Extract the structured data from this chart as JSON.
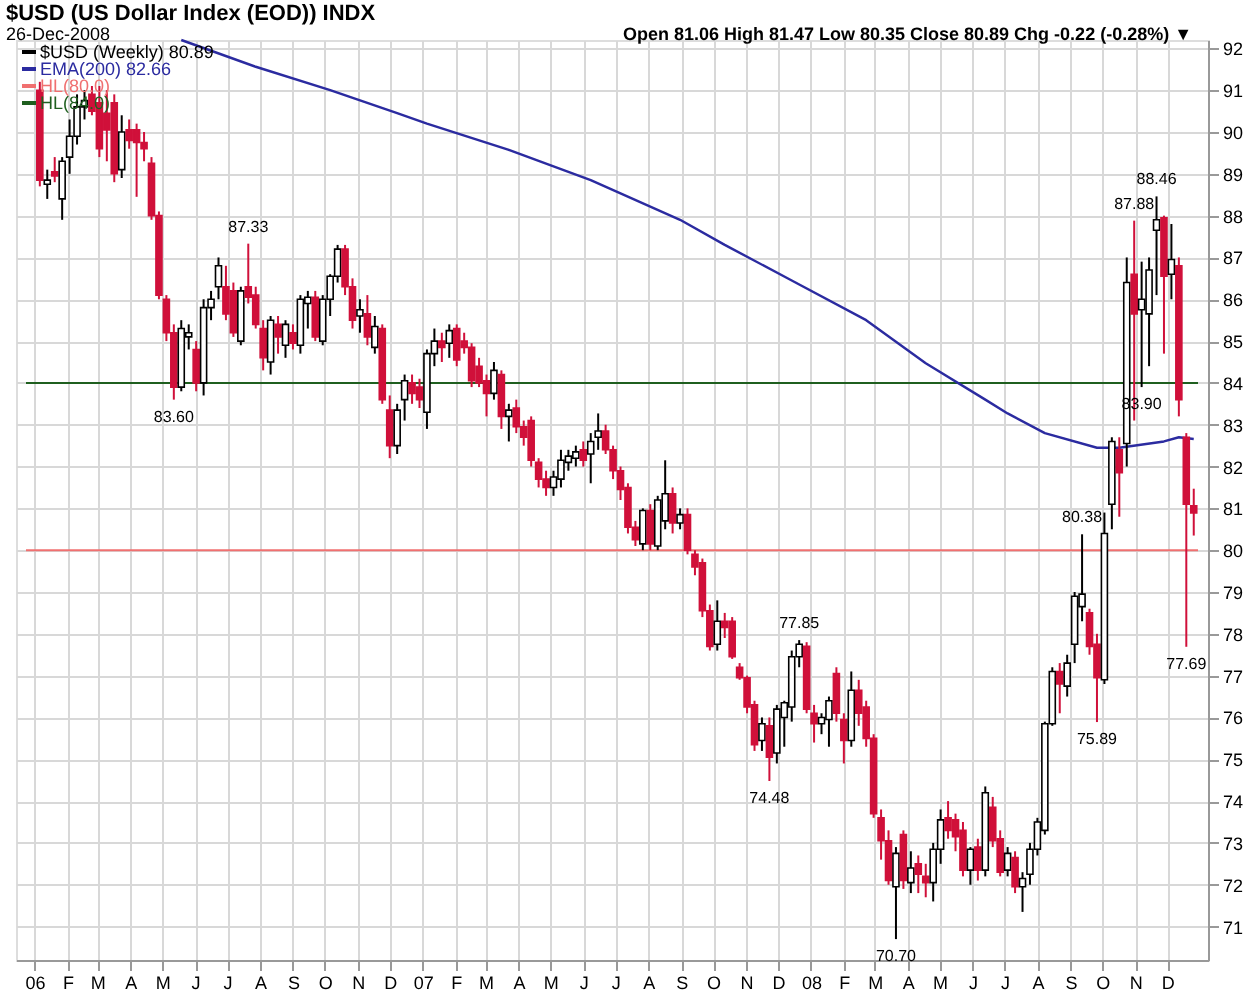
{
  "chart_data": {
    "type": "candlestick",
    "title": "$USD (US Dollar Index (EOD)) INDX",
    "subtitle": "26-Dec-2008",
    "annotations": [
      "Open 81.06 High 81.47 Low 80.35 Close 80.89 Chg -0.22 (-0.28%) ▼",
      {
        "text": "87.33",
        "x": "2006-07-21",
        "y": 87.33
      },
      {
        "text": "83.60",
        "x": "2006-05-12",
        "y": 83.6
      },
      {
        "text": "77.85",
        "x": "2007-12-21",
        "y": 77.85
      },
      {
        "text": "74.48",
        "x": "2007-11-23",
        "y": 74.48
      },
      {
        "text": "70.70",
        "x": "2008-03-21",
        "y": 70.7
      },
      {
        "text": "80.38",
        "x": "2008-09-12",
        "y": 80.38
      },
      {
        "text": "75.89",
        "x": "2008-09-26",
        "y": 75.89
      },
      {
        "text": "87.88",
        "x": "2008-10-31",
        "y": 87.88
      },
      {
        "text": "83.90",
        "x": "2008-11-07",
        "y": 83.9
      },
      {
        "text": "88.46",
        "x": "2008-11-21",
        "y": 88.46
      },
      {
        "text": "77.69",
        "x": "2008-12-19",
        "y": 77.69
      }
    ],
    "xlim": [
      "2005-12-24",
      "2008-12-30"
    ],
    "xticks": [
      {
        "value": "2006-01-01",
        "label": "06"
      },
      {
        "value": "2006-02-01",
        "label": "F"
      },
      {
        "value": "2006-03-01",
        "label": "M"
      },
      {
        "value": "2006-04-01",
        "label": "A"
      },
      {
        "value": "2006-05-01",
        "label": "M"
      },
      {
        "value": "2006-06-01",
        "label": "J"
      },
      {
        "value": "2006-07-01",
        "label": "J"
      },
      {
        "value": "2006-08-01",
        "label": "A"
      },
      {
        "value": "2006-09-01",
        "label": "S"
      },
      {
        "value": "2006-10-01",
        "label": "O"
      },
      {
        "value": "2006-11-01",
        "label": "N"
      },
      {
        "value": "2006-12-01",
        "label": "D"
      },
      {
        "value": "2007-01-01",
        "label": "07"
      },
      {
        "value": "2007-02-01",
        "label": "F"
      },
      {
        "value": "2007-03-01",
        "label": "M"
      },
      {
        "value": "2007-04-01",
        "label": "A"
      },
      {
        "value": "2007-05-01",
        "label": "M"
      },
      {
        "value": "2007-06-01",
        "label": "J"
      },
      {
        "value": "2007-07-01",
        "label": "J"
      },
      {
        "value": "2007-08-01",
        "label": "A"
      },
      {
        "value": "2007-09-01",
        "label": "S"
      },
      {
        "value": "2007-10-01",
        "label": "O"
      },
      {
        "value": "2007-11-01",
        "label": "N"
      },
      {
        "value": "2007-12-01",
        "label": "D"
      },
      {
        "value": "2008-01-01",
        "label": "08"
      },
      {
        "value": "2008-02-01",
        "label": "F"
      },
      {
        "value": "2008-03-01",
        "label": "M"
      },
      {
        "value": "2008-04-01",
        "label": "A"
      },
      {
        "value": "2008-05-01",
        "label": "M"
      },
      {
        "value": "2008-06-01",
        "label": "J"
      },
      {
        "value": "2008-07-01",
        "label": "J"
      },
      {
        "value": "2008-08-01",
        "label": "A"
      },
      {
        "value": "2008-09-01",
        "label": "S"
      },
      {
        "value": "2008-10-01",
        "label": "O"
      },
      {
        "value": "2008-11-01",
        "label": "N"
      },
      {
        "value": "2008-12-01",
        "label": "D"
      }
    ],
    "ylim": [
      70.2,
      92.2
    ],
    "yticks": [
      71,
      72,
      73,
      74,
      75,
      76,
      77,
      78,
      79,
      80,
      81,
      82,
      83,
      84,
      85,
      86,
      87,
      88,
      89,
      90,
      91,
      92
    ],
    "grid": true,
    "legend": "top left",
    "ref_lines": [
      {
        "axis": "y",
        "value": 80,
        "label": "HL(80.0)",
        "color": "#f07070"
      },
      {
        "axis": "y",
        "value": 84,
        "label": "HL(84.0)",
        "color": "#1f5f1f"
      }
    ],
    "series": [
      {
        "name": "$USD (Weekly) 80.89",
        "type": "candlestick",
        "x": [
          "2006-01-06",
          "2006-01-13",
          "2006-01-20",
          "2006-01-27",
          "2006-02-03",
          "2006-02-10",
          "2006-02-17",
          "2006-02-24",
          "2006-03-03",
          "2006-03-10",
          "2006-03-17",
          "2006-03-24",
          "2006-03-31",
          "2006-04-07",
          "2006-04-14",
          "2006-04-21",
          "2006-04-28",
          "2006-05-05",
          "2006-05-12",
          "2006-05-19",
          "2006-05-26",
          "2006-06-02",
          "2006-06-09",
          "2006-06-16",
          "2006-06-23",
          "2006-06-30",
          "2006-07-07",
          "2006-07-14",
          "2006-07-21",
          "2006-07-28",
          "2006-08-04",
          "2006-08-11",
          "2006-08-18",
          "2006-08-25",
          "2006-09-01",
          "2006-09-08",
          "2006-09-15",
          "2006-09-22",
          "2006-09-29",
          "2006-10-06",
          "2006-10-13",
          "2006-10-20",
          "2006-10-27",
          "2006-11-03",
          "2006-11-10",
          "2006-11-17",
          "2006-11-24",
          "2006-12-01",
          "2006-12-08",
          "2006-12-15",
          "2006-12-22",
          "2006-12-29",
          "2007-01-05",
          "2007-01-12",
          "2007-01-19",
          "2007-01-26",
          "2007-02-02",
          "2007-02-09",
          "2007-02-16",
          "2007-02-23",
          "2007-03-02",
          "2007-03-09",
          "2007-03-16",
          "2007-03-23",
          "2007-03-30",
          "2007-04-06",
          "2007-04-13",
          "2007-04-20",
          "2007-04-27",
          "2007-05-04",
          "2007-05-11",
          "2007-05-18",
          "2007-05-25",
          "2007-06-01",
          "2007-06-08",
          "2007-06-15",
          "2007-06-22",
          "2007-06-29",
          "2007-07-06",
          "2007-07-13",
          "2007-07-20",
          "2007-07-27",
          "2007-08-03",
          "2007-08-10",
          "2007-08-17",
          "2007-08-24",
          "2007-08-31",
          "2007-09-07",
          "2007-09-14",
          "2007-09-21",
          "2007-09-28",
          "2007-10-05",
          "2007-10-12",
          "2007-10-19",
          "2007-10-26",
          "2007-11-02",
          "2007-11-09",
          "2007-11-16",
          "2007-11-23",
          "2007-11-30",
          "2007-12-07",
          "2007-12-14",
          "2007-12-21",
          "2007-12-28",
          "2008-01-04",
          "2008-01-11",
          "2008-01-18",
          "2008-01-25",
          "2008-02-01",
          "2008-02-08",
          "2008-02-15",
          "2008-02-22",
          "2008-02-29",
          "2008-03-07",
          "2008-03-14",
          "2008-03-21",
          "2008-03-28",
          "2008-04-04",
          "2008-04-11",
          "2008-04-18",
          "2008-04-25",
          "2008-05-02",
          "2008-05-09",
          "2008-05-16",
          "2008-05-23",
          "2008-05-30",
          "2008-06-06",
          "2008-06-13",
          "2008-06-20",
          "2008-06-27",
          "2008-07-04",
          "2008-07-11",
          "2008-07-18",
          "2008-07-25",
          "2008-08-01",
          "2008-08-08",
          "2008-08-15",
          "2008-08-22",
          "2008-08-29",
          "2008-09-05",
          "2008-09-12",
          "2008-09-19",
          "2008-09-26",
          "2008-10-03",
          "2008-10-10",
          "2008-10-17",
          "2008-10-24",
          "2008-10-31",
          "2008-11-07",
          "2008-11-14",
          "2008-11-21",
          "2008-11-28",
          "2008-12-05",
          "2008-12-12",
          "2008-12-19",
          "2008-12-26"
        ],
        "ohlc": [
          [
            91.0,
            91.2,
            88.7,
            88.85
          ],
          [
            88.75,
            89.1,
            88.4,
            88.85
          ],
          [
            89.05,
            89.4,
            88.8,
            88.95
          ],
          [
            88.4,
            89.4,
            87.9,
            89.3
          ],
          [
            89.4,
            90.3,
            89.0,
            89.9
          ],
          [
            89.9,
            90.9,
            89.7,
            90.6
          ],
          [
            90.6,
            91.0,
            90.3,
            90.75
          ],
          [
            90.9,
            91.1,
            90.4,
            90.5
          ],
          [
            90.7,
            91.1,
            89.4,
            89.6
          ],
          [
            90.45,
            91.0,
            89.3,
            90.05
          ],
          [
            90.7,
            90.9,
            88.8,
            89.0
          ],
          [
            89.1,
            90.4,
            88.9,
            90.0
          ],
          [
            90.05,
            90.3,
            89.6,
            89.8
          ],
          [
            90.05,
            90.2,
            88.45,
            89.75
          ],
          [
            89.75,
            90.0,
            89.3,
            89.6
          ],
          [
            89.25,
            89.4,
            87.9,
            88.0
          ],
          [
            88.0,
            88.1,
            86.0,
            86.1
          ],
          [
            86.0,
            86.1,
            85.0,
            85.2
          ],
          [
            85.2,
            85.4,
            83.6,
            83.9
          ],
          [
            83.9,
            85.5,
            83.8,
            85.3
          ],
          [
            85.1,
            85.4,
            84.8,
            85.2
          ],
          [
            84.8,
            85.0,
            83.8,
            84.0
          ],
          [
            84.0,
            86.0,
            83.7,
            85.8
          ],
          [
            85.8,
            86.2,
            85.5,
            86.0
          ],
          [
            86.3,
            87.0,
            86.0,
            86.8
          ],
          [
            86.3,
            86.8,
            85.5,
            85.65
          ],
          [
            86.2,
            86.4,
            85.1,
            85.2
          ],
          [
            85.0,
            86.3,
            84.9,
            86.2
          ],
          [
            86.3,
            87.33,
            85.9,
            86.05
          ],
          [
            86.1,
            86.3,
            85.3,
            85.4
          ],
          [
            85.3,
            85.5,
            84.3,
            84.6
          ],
          [
            84.5,
            85.6,
            84.2,
            85.5
          ],
          [
            85.4,
            85.6,
            84.7,
            85.1
          ],
          [
            84.9,
            85.5,
            84.6,
            85.4
          ],
          [
            85.2,
            85.4,
            84.8,
            84.95
          ],
          [
            84.9,
            86.1,
            84.7,
            86.0
          ],
          [
            85.9,
            86.2,
            85.3,
            86.05
          ],
          [
            86.05,
            86.2,
            85.0,
            85.1
          ],
          [
            85.0,
            86.1,
            84.9,
            86.0
          ],
          [
            86.0,
            86.6,
            85.6,
            86.55
          ],
          [
            86.55,
            87.3,
            86.4,
            87.2
          ],
          [
            87.2,
            87.3,
            86.1,
            86.3
          ],
          [
            86.3,
            86.5,
            85.3,
            85.5
          ],
          [
            85.6,
            86.0,
            85.2,
            85.75
          ],
          [
            85.65,
            86.1,
            84.9,
            85.1
          ],
          [
            84.85,
            85.6,
            84.7,
            85.35
          ],
          [
            85.3,
            85.4,
            83.5,
            83.6
          ],
          [
            83.35,
            83.7,
            82.2,
            82.5
          ],
          [
            82.5,
            83.5,
            82.3,
            83.35
          ],
          [
            83.6,
            84.2,
            83.1,
            84.05
          ],
          [
            84.0,
            84.2,
            83.5,
            83.75
          ],
          [
            83.9,
            84.1,
            83.4,
            83.6
          ],
          [
            83.3,
            84.8,
            82.9,
            84.7
          ],
          [
            84.7,
            85.3,
            84.4,
            85.0
          ],
          [
            85.0,
            85.2,
            84.5,
            84.85
          ],
          [
            84.95,
            85.4,
            84.6,
            85.25
          ],
          [
            85.3,
            85.4,
            84.4,
            84.55
          ],
          [
            85.0,
            85.2,
            84.7,
            84.85
          ],
          [
            84.85,
            84.95,
            83.9,
            84.05
          ],
          [
            84.4,
            84.6,
            83.9,
            84.0
          ],
          [
            84.05,
            84.2,
            83.2,
            83.75
          ],
          [
            83.75,
            84.5,
            83.6,
            84.3
          ],
          [
            84.2,
            84.3,
            82.9,
            83.2
          ],
          [
            83.2,
            83.5,
            82.6,
            83.35
          ],
          [
            83.4,
            83.6,
            82.8,
            82.95
          ],
          [
            82.95,
            83.1,
            82.5,
            82.7
          ],
          [
            83.1,
            83.2,
            82.0,
            82.15
          ],
          [
            82.1,
            82.2,
            81.5,
            81.7
          ],
          [
            81.7,
            81.9,
            81.3,
            81.5
          ],
          [
            81.5,
            81.9,
            81.3,
            81.75
          ],
          [
            81.7,
            82.4,
            81.5,
            82.15
          ],
          [
            82.1,
            82.4,
            81.9,
            82.25
          ],
          [
            82.2,
            82.5,
            82.0,
            82.35
          ],
          [
            82.4,
            82.6,
            82.0,
            82.15
          ],
          [
            82.3,
            82.8,
            81.6,
            82.6
          ],
          [
            82.7,
            83.27,
            82.4,
            82.85
          ],
          [
            82.85,
            83.0,
            82.3,
            82.4
          ],
          [
            82.4,
            82.5,
            81.7,
            81.9
          ],
          [
            81.9,
            82.0,
            81.2,
            81.45
          ],
          [
            81.5,
            81.6,
            80.4,
            80.55
          ],
          [
            80.55,
            80.7,
            80.1,
            80.25
          ],
          [
            80.15,
            81.0,
            80.0,
            80.95
          ],
          [
            80.95,
            81.1,
            80.0,
            80.15
          ],
          [
            80.1,
            81.3,
            80.0,
            81.2
          ],
          [
            80.7,
            82.15,
            80.5,
            81.35
          ],
          [
            81.35,
            81.5,
            80.4,
            80.65
          ],
          [
            80.65,
            81.0,
            80.5,
            80.85
          ],
          [
            80.85,
            81.0,
            79.9,
            80.0
          ],
          [
            79.9,
            80.0,
            79.4,
            79.6
          ],
          [
            79.7,
            79.8,
            78.4,
            78.55
          ],
          [
            78.55,
            78.7,
            77.6,
            77.7
          ],
          [
            77.75,
            78.8,
            77.6,
            78.3
          ],
          [
            78.3,
            78.5,
            77.9,
            78.15
          ],
          [
            78.3,
            78.4,
            77.4,
            77.45
          ],
          [
            77.2,
            77.3,
            76.9,
            76.95
          ],
          [
            76.95,
            77.0,
            76.1,
            76.25
          ],
          [
            76.3,
            76.4,
            75.2,
            75.35
          ],
          [
            75.45,
            76.0,
            75.2,
            75.85
          ],
          [
            75.8,
            76.0,
            74.48,
            75.05
          ],
          [
            75.15,
            76.3,
            74.9,
            76.2
          ],
          [
            76.0,
            76.4,
            75.3,
            76.35
          ],
          [
            76.25,
            77.6,
            75.9,
            77.45
          ],
          [
            77.45,
            77.85,
            77.2,
            77.75
          ],
          [
            77.7,
            77.8,
            76.1,
            76.2
          ],
          [
            76.1,
            76.3,
            75.4,
            75.85
          ],
          [
            75.85,
            76.1,
            75.6,
            76.0
          ],
          [
            75.95,
            76.5,
            75.3,
            76.4
          ],
          [
            77.05,
            77.2,
            75.9,
            76.1
          ],
          [
            75.95,
            76.1,
            74.9,
            75.45
          ],
          [
            75.45,
            77.1,
            75.3,
            76.65
          ],
          [
            76.65,
            76.9,
            75.8,
            76.1
          ],
          [
            76.25,
            76.4,
            75.3,
            75.5
          ],
          [
            75.5,
            75.6,
            73.6,
            73.7
          ],
          [
            73.6,
            73.8,
            72.6,
            73.05
          ],
          [
            73.05,
            73.3,
            72.0,
            72.1
          ],
          [
            71.95,
            72.9,
            70.7,
            72.75
          ],
          [
            73.2,
            73.3,
            71.9,
            72.1
          ],
          [
            72.05,
            72.8,
            71.8,
            72.4
          ],
          [
            72.5,
            72.7,
            71.8,
            72.25
          ],
          [
            72.2,
            72.5,
            71.7,
            72.05
          ],
          [
            72.05,
            73.0,
            71.6,
            72.85
          ],
          [
            72.85,
            73.8,
            72.5,
            73.55
          ],
          [
            73.6,
            74.0,
            73.1,
            73.3
          ],
          [
            73.55,
            73.7,
            72.8,
            73.15
          ],
          [
            73.3,
            73.5,
            72.2,
            72.35
          ],
          [
            72.35,
            72.9,
            72.0,
            72.85
          ],
          [
            72.9,
            73.1,
            72.1,
            72.35
          ],
          [
            72.35,
            74.35,
            72.2,
            74.2
          ],
          [
            73.85,
            74.1,
            72.9,
            73.05
          ],
          [
            73.1,
            73.3,
            72.2,
            72.3
          ],
          [
            72.35,
            72.9,
            72.2,
            72.75
          ],
          [
            72.65,
            72.8,
            71.8,
            71.95
          ],
          [
            71.95,
            72.3,
            71.35,
            72.15
          ],
          [
            72.25,
            73.0,
            72.0,
            72.85
          ],
          [
            72.85,
            73.6,
            72.7,
            73.5
          ],
          [
            73.3,
            75.9,
            73.2,
            75.85
          ],
          [
            75.85,
            77.2,
            75.8,
            77.1
          ],
          [
            77.1,
            77.3,
            76.1,
            76.8
          ],
          [
            76.75,
            77.5,
            76.5,
            77.3
          ],
          [
            77.75,
            79.0,
            77.3,
            78.9
          ],
          [
            78.65,
            80.38,
            78.3,
            78.95
          ],
          [
            78.5,
            78.6,
            77.5,
            77.7
          ],
          [
            77.75,
            78.0,
            75.89,
            76.95
          ],
          [
            76.9,
            80.9,
            76.8,
            80.4
          ],
          [
            81.1,
            82.7,
            80.5,
            82.6
          ],
          [
            82.4,
            82.7,
            80.8,
            81.85
          ],
          [
            82.55,
            87.0,
            82.0,
            86.4
          ],
          [
            86.6,
            87.88,
            83.1,
            85.65
          ],
          [
            85.75,
            86.9,
            83.9,
            86.0
          ],
          [
            85.65,
            87.0,
            84.4,
            86.7
          ],
          [
            87.65,
            88.46,
            86.1,
            87.9
          ],
          [
            87.95,
            88.0,
            84.7,
            86.55
          ],
          [
            86.6,
            87.8,
            86.0,
            86.95
          ],
          [
            86.8,
            87.0,
            83.2,
            83.6
          ],
          [
            82.7,
            82.8,
            77.69,
            81.1
          ],
          [
            81.06,
            81.47,
            80.35,
            80.89
          ]
        ]
      },
      {
        "name": "EMA(200) 82.66",
        "type": "line",
        "color": "#2b2ba0",
        "x": [
          "2006-05-19",
          "2006-07-28",
          "2006-10-06",
          "2006-12-08",
          "2007-01-05",
          "2007-03-23",
          "2007-06-08",
          "2007-08-31",
          "2007-10-12",
          "2007-12-14",
          "2008-02-22",
          "2008-04-18",
          "2008-06-13",
          "2008-07-04",
          "2008-08-08",
          "2008-09-26",
          "2008-10-17",
          "2008-11-28",
          "2008-12-12",
          "2008-12-26"
        ],
        "values": [
          92.2,
          91.56,
          91.0,
          90.45,
          90.2,
          89.57,
          88.85,
          87.9,
          87.3,
          86.45,
          85.5,
          84.47,
          83.6,
          83.27,
          82.8,
          82.45,
          82.45,
          82.6,
          82.7,
          82.66
        ]
      }
    ]
  }
}
